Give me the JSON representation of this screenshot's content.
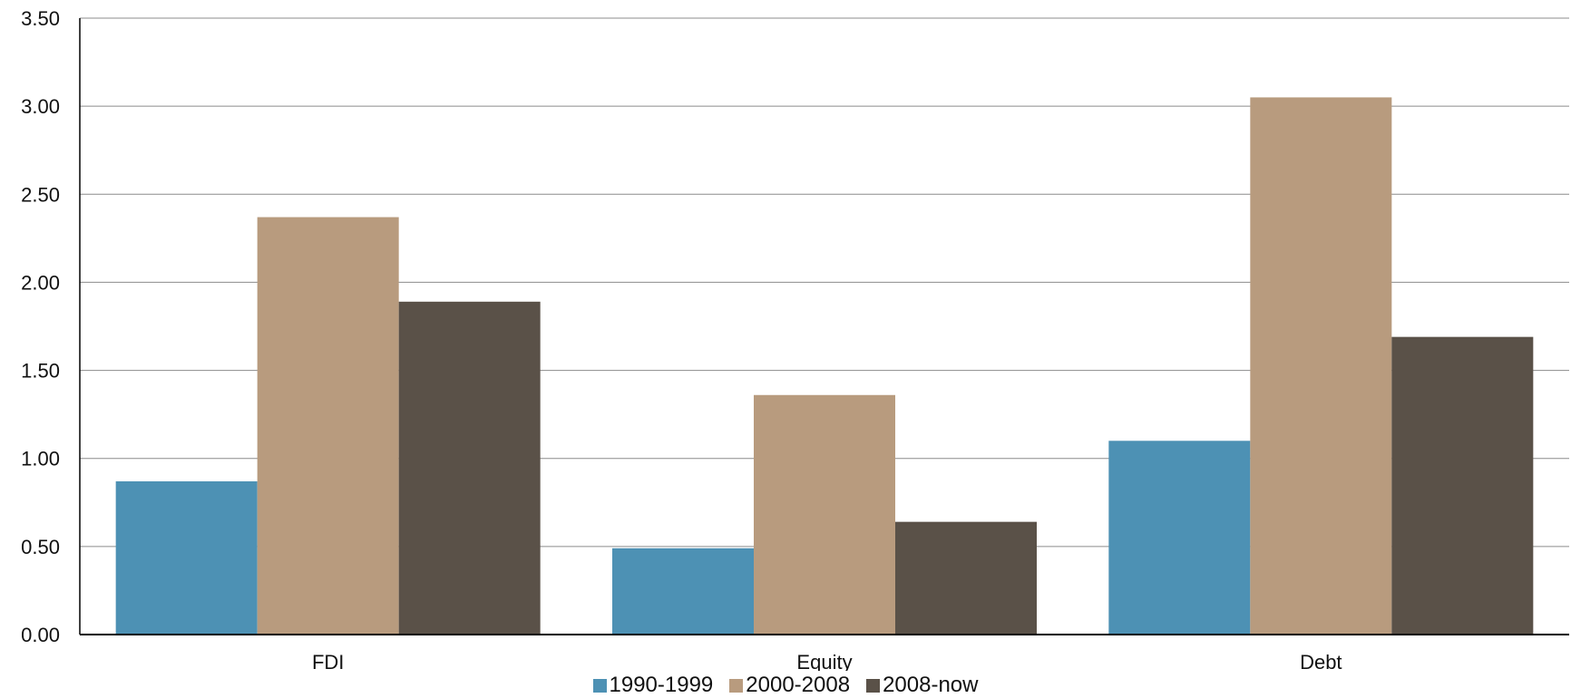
{
  "chart_data": {
    "type": "bar",
    "categories": [
      "FDI",
      "Equity",
      "Debt"
    ],
    "series": [
      {
        "name": "1990-1999",
        "values": [
          0.87,
          0.49,
          1.1
        ],
        "color": "#4d91b4"
      },
      {
        "name": "2000-2008",
        "values": [
          2.37,
          1.36,
          3.05
        ],
        "color": "#b89b7e"
      },
      {
        "name": "2008-now",
        "values": [
          1.89,
          0.64,
          1.69
        ],
        "color": "#5a5148"
      }
    ],
    "ylim": [
      0,
      3.5
    ],
    "yticks": [
      "0.00",
      "0.50",
      "1.00",
      "1.50",
      "2.00",
      "2.50",
      "3.00",
      "3.50"
    ],
    "grid": true,
    "legend_position": "bottom"
  }
}
